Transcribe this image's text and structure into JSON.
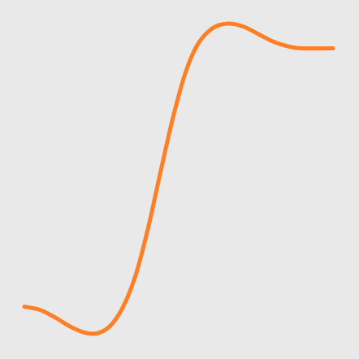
{
  "chart_data": {
    "type": "line",
    "title": "",
    "xlabel": "",
    "ylabel": "",
    "grid": false,
    "legend": "none",
    "xlim": [
      0,
      1
    ],
    "ylim": [
      0,
      1
    ],
    "series": [
      {
        "color": "#ff7f27",
        "points": [
          {
            "x": 0.0,
            "y": 0.085
          },
          {
            "x": 0.05,
            "y": 0.075
          },
          {
            "x": 0.1,
            "y": 0.05
          },
          {
            "x": 0.15,
            "y": 0.02
          },
          {
            "x": 0.2,
            "y": 0.0
          },
          {
            "x": 0.24,
            "y": 0.0
          },
          {
            "x": 0.28,
            "y": 0.025
          },
          {
            "x": 0.32,
            "y": 0.085
          },
          {
            "x": 0.36,
            "y": 0.185
          },
          {
            "x": 0.4,
            "y": 0.335
          },
          {
            "x": 0.44,
            "y": 0.515
          },
          {
            "x": 0.48,
            "y": 0.69
          },
          {
            "x": 0.52,
            "y": 0.835
          },
          {
            "x": 0.56,
            "y": 0.93
          },
          {
            "x": 0.61,
            "y": 0.985
          },
          {
            "x": 0.66,
            "y": 1.0
          },
          {
            "x": 0.71,
            "y": 0.99
          },
          {
            "x": 0.76,
            "y": 0.965
          },
          {
            "x": 0.81,
            "y": 0.94
          },
          {
            "x": 0.86,
            "y": 0.925
          },
          {
            "x": 0.9,
            "y": 0.92
          },
          {
            "x": 1.0,
            "y": 0.92
          }
        ]
      }
    ]
  }
}
